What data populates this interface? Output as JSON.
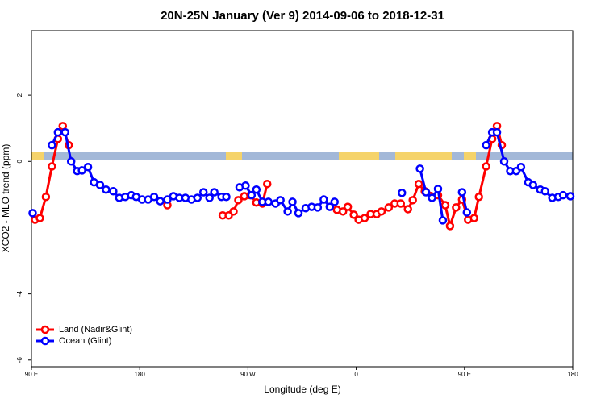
{
  "chart_data": {
    "type": "line",
    "title": "20N-25N January (Ver 9)   2014-09-06 to 2018-12-31",
    "xlabel": "Longitude (deg E)",
    "ylabel": "XCO2 - MLO trend (ppm)",
    "xlim": [
      90,
      540
    ],
    "xticks": [
      {
        "value": 90,
        "label": "90 E"
      },
      180,
      {
        "value": 270,
        "label": "90 W"
      },
      {
        "value": 360,
        "label": "0"
      },
      {
        "value": 450,
        "label": "90 E"
      },
      {
        "value": 540,
        "label": "180"
      }
    ],
    "ylim": [
      -6.2,
      3.95
    ],
    "yticks": [
      -6,
      -4,
      0,
      2
    ],
    "legend": "bottomleft",
    "series": [
      {
        "name": "Land (Nadir&Glint)",
        "color": "#ff0000",
        "x": [
          93,
          97,
          102,
          107,
          112,
          116,
          121,
          150,
          203,
          240,
          249,
          254,
          258,
          262,
          267,
          272,
          277,
          282,
          286,
          350,
          344,
          349,
          353,
          358,
          362,
          367,
          372,
          377,
          381,
          387,
          392,
          397,
          403,
          407,
          412,
          417,
          428,
          434,
          438,
          443,
          448,
          453,
          458,
          462,
          468,
          473,
          477,
          481
        ],
        "values": [
          -1.76,
          -1.71,
          -1.07,
          -0.15,
          0.68,
          1.07,
          0.49,
          null,
          -1.32,
          null,
          -1.63,
          -1.63,
          -1.51,
          -1.17,
          -1.05,
          -1.02,
          -1.24,
          -1.27,
          -0.68,
          null,
          -1.46,
          -1.51,
          -1.37,
          -1.61,
          -1.76,
          -1.71,
          -1.59,
          -1.59,
          -1.51,
          -1.39,
          -1.27,
          -1.27,
          -1.44,
          -1.17,
          -0.68,
          -0.9,
          -1.02,
          -1.32,
          -1.95,
          -1.39,
          -1.15,
          -1.76,
          -1.71,
          -1.07,
          -0.15,
          0.68,
          1.07,
          0.49
        ]
      },
      {
        "name": "Ocean (Glint)",
        "color": "#0000ff",
        "x": [
          91,
          95,
          107,
          112,
          118,
          123,
          128,
          132,
          137,
          142,
          147,
          152,
          158,
          163,
          168,
          173,
          177,
          182,
          187,
          192,
          197,
          203,
          208,
          213,
          218,
          223,
          228,
          233,
          238,
          242,
          248,
          252,
          255,
          263,
          268,
          273,
          277,
          282,
          287,
          293,
          297,
          303,
          307,
          312,
          318,
          323,
          328,
          333,
          338,
          342,
          380,
          398,
          405,
          413,
          418,
          423,
          428,
          432,
          440,
          448,
          452,
          460,
          468,
          473,
          477,
          483,
          488,
          493,
          497,
          503,
          507,
          513,
          517,
          523,
          528,
          532,
          538
        ],
        "values": [
          -1.56,
          null,
          0.49,
          0.88,
          0.88,
          0,
          -0.29,
          -0.27,
          -0.17,
          -0.63,
          -0.71,
          -0.85,
          -0.9,
          -1.1,
          -1.07,
          -1.02,
          -1.07,
          -1.15,
          -1.15,
          -1.07,
          -1.2,
          -1.15,
          -1.05,
          -1.1,
          -1.1,
          -1.15,
          -1.1,
          -0.93,
          -1.1,
          -0.93,
          -1.07,
          -1.07,
          null,
          -0.78,
          -0.73,
          -1.02,
          -0.85,
          -1.22,
          -1.22,
          -1.27,
          -1.17,
          -1.51,
          -1.22,
          -1.56,
          -1.41,
          -1.37,
          -1.39,
          -1.15,
          -1.37,
          -1.22,
          null,
          -0.95,
          null,
          -0.22,
          -0.93,
          -1.1,
          -0.83,
          -1.78,
          null,
          -0.93,
          -1.54,
          null,
          0.49,
          0.88,
          0.88,
          0,
          -0.29,
          -0.29,
          -0.17,
          -0.63,
          -0.71,
          -0.85,
          -0.9,
          -1.1,
          -1.07,
          -1.02,
          -1.05
        ]
      }
    ]
  }
}
